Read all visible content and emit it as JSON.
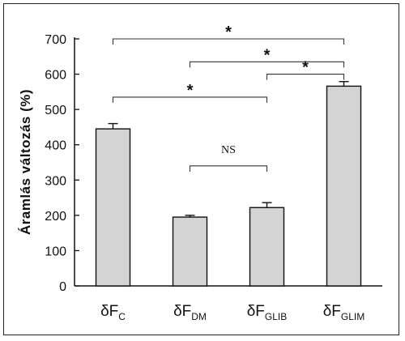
{
  "chart_data": {
    "type": "bar",
    "ylabel": "Áramlás változás (%)",
    "ylim": [
      0,
      700
    ],
    "yticks": [
      "0",
      "100",
      "200",
      "300",
      "400",
      "500",
      "600",
      "700"
    ],
    "categories": [
      {
        "main": "δF",
        "sub": "C"
      },
      {
        "main": "δF",
        "sub": "DM"
      },
      {
        "main": "δF",
        "sub": "GLIB"
      },
      {
        "main": "δF",
        "sub": "GLIM"
      }
    ],
    "values": [
      445,
      195,
      222,
      566
    ],
    "errors": [
      15,
      5,
      14,
      13
    ],
    "bar_color": "#d4d4d4",
    "significance": [
      {
        "from": 0,
        "to": 3,
        "label": "*",
        "level": 700
      },
      {
        "from": 1,
        "to": 3,
        "label": "*",
        "level": 635
      },
      {
        "from": 2,
        "to": 3,
        "label": "*",
        "level": 600
      },
      {
        "from": 0,
        "to": 2,
        "label": "*",
        "level": 535
      },
      {
        "from": 1,
        "to": 2,
        "label": "NS",
        "level": 340
      }
    ]
  }
}
